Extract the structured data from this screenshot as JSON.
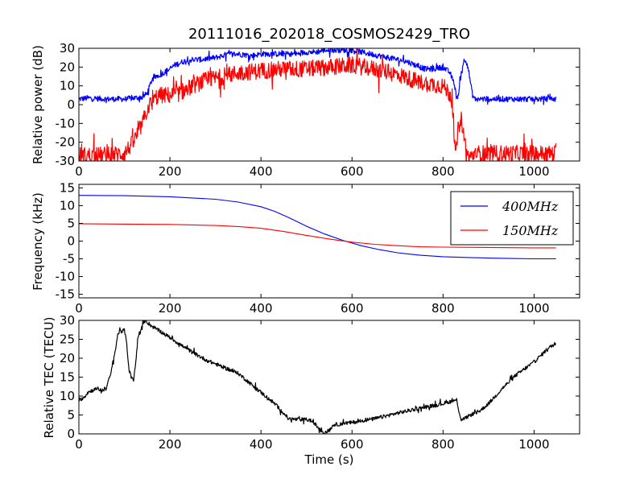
{
  "figure": {
    "title": "20111016_202018_COSMOS2429_TRO",
    "xlabel": "Time (s)"
  },
  "chart_data": [
    {
      "type": "line",
      "ylabel": "Relative power (dB)",
      "xlim": [
        0,
        1100
      ],
      "ylim": [
        -30,
        30
      ],
      "xticks": [
        0,
        200,
        400,
        600,
        800,
        1000
      ],
      "yticks": [
        -30,
        -20,
        -10,
        0,
        10,
        20,
        30
      ],
      "legend": "none",
      "series": [
        {
          "color": "#0000ff",
          "noise": 1.5,
          "x": [
            0,
            20,
            60,
            100,
            140,
            150,
            160,
            170,
            180,
            200,
            210,
            230,
            250,
            270,
            300,
            330,
            350,
            380,
            400,
            420,
            450,
            480,
            500,
            520,
            540,
            560,
            580,
            600,
            620,
            640,
            660,
            680,
            700,
            720,
            740,
            760,
            780,
            800,
            815,
            825,
            830,
            835,
            840,
            845,
            850,
            855,
            860,
            865,
            870,
            900,
            950,
            1000,
            1048
          ],
          "y": [
            3,
            3.5,
            3,
            3,
            4,
            6,
            13,
            15,
            16,
            19,
            21,
            23,
            24,
            24,
            25,
            27,
            27,
            26,
            27,
            27,
            27,
            27,
            28,
            28,
            29,
            29,
            29,
            29,
            28,
            27,
            26,
            25,
            24,
            23,
            21,
            19,
            19,
            20,
            17,
            11,
            3,
            7,
            17,
            23,
            24,
            20,
            12,
            5,
            3,
            3,
            3,
            3,
            3
          ]
        },
        {
          "color": "#ff0000",
          "noise": 4.5,
          "x": [
            0,
            50,
            100,
            120,
            130,
            140,
            145,
            150,
            155,
            160,
            170,
            180,
            200,
            220,
            250,
            280,
            300,
            350,
            400,
            450,
            500,
            550,
            600,
            650,
            700,
            750,
            800,
            820,
            825,
            828,
            832,
            838,
            842,
            848,
            855,
            860,
            865,
            870,
            880,
            900,
            950,
            1000,
            1048
          ],
          "y": [
            -27,
            -27,
            -26,
            -20,
            -15,
            -10,
            -6,
            -3,
            0,
            0,
            4,
            5,
            5,
            6,
            10,
            13,
            14,
            17,
            18,
            19,
            19,
            20,
            21,
            19,
            16,
            12,
            10,
            4,
            -20,
            -28,
            -15,
            -6,
            -10,
            -20,
            -28,
            -29,
            -27,
            -26,
            -26,
            -26,
            -26,
            -26,
            -26
          ]
        }
      ]
    },
    {
      "type": "line",
      "ylabel": "Frequency (kHz)",
      "xlim": [
        0,
        1100
      ],
      "ylim": [
        -16,
        16
      ],
      "xticks": [
        0,
        200,
        400,
        600,
        800,
        1000
      ],
      "yticks": [
        -15,
        -10,
        -5,
        0,
        5,
        10,
        15
      ],
      "legend": "top-right",
      "series": [
        {
          "name": "400MHz",
          "color": "#0000ff",
          "x": [
            0,
            100,
            200,
            300,
            350,
            400,
            430,
            460,
            500,
            540,
            580,
            620,
            660,
            700,
            750,
            800,
            850,
            900,
            950,
            1000,
            1048
          ],
          "y": [
            12.9,
            12.8,
            12.5,
            11.8,
            11.0,
            9.7,
            8.4,
            6.7,
            4.2,
            2.0,
            0.2,
            -1.3,
            -2.4,
            -3.3,
            -4.0,
            -4.4,
            -4.6,
            -4.8,
            -4.9,
            -5.0,
            -5.0
          ]
        },
        {
          "name": "150MHz",
          "color": "#ff0000",
          "x": [
            0,
            100,
            200,
            300,
            350,
            400,
            450,
            500,
            550,
            600,
            650,
            700,
            750,
            800,
            900,
            1000,
            1048
          ],
          "y": [
            4.9,
            4.8,
            4.7,
            4.4,
            4.1,
            3.6,
            2.7,
            1.6,
            0.6,
            -0.3,
            -0.9,
            -1.3,
            -1.6,
            -1.7,
            -1.8,
            -1.9,
            -1.9
          ]
        }
      ]
    },
    {
      "type": "line",
      "ylabel": "Relative TEC (TECU)",
      "xlim": [
        0,
        1100
      ],
      "ylim": [
        0,
        30
      ],
      "xticks": [
        0,
        200,
        400,
        600,
        800,
        1000
      ],
      "yticks": [
        0,
        5,
        10,
        15,
        20,
        25,
        30
      ],
      "legend": "none",
      "series": [
        {
          "color": "#000000",
          "noise": 0.5,
          "x": [
            0,
            10,
            20,
            40,
            50,
            60,
            70,
            80,
            85,
            90,
            95,
            100,
            105,
            110,
            115,
            120,
            125,
            130,
            135,
            140,
            145,
            150,
            160,
            180,
            200,
            230,
            250,
            280,
            300,
            350,
            400,
            430,
            450,
            460,
            480,
            500,
            510,
            520,
            530,
            540,
            550,
            560,
            570,
            580,
            600,
            620,
            650,
            700,
            750,
            800,
            830,
            835,
            840,
            845,
            850,
            860,
            870,
            880,
            900,
            930,
            960,
            1000,
            1030,
            1048
          ],
          "y": [
            9,
            9.5,
            11,
            12,
            11.5,
            12,
            16,
            22,
            26,
            27.5,
            27,
            27.5,
            24,
            17,
            15,
            14,
            19,
            26,
            27,
            29,
            29.8,
            29.5,
            28.5,
            27,
            25.5,
            23,
            21.5,
            19.5,
            18.5,
            16,
            11,
            8,
            5.5,
            4,
            3.8,
            3.8,
            3.5,
            2.5,
            1,
            0.2,
            1,
            2.5,
            2.5,
            2.8,
            3,
            3.5,
            4,
            5.5,
            6.8,
            8,
            9,
            6,
            3.7,
            4,
            4.2,
            5,
            5.5,
            6,
            8,
            12,
            15.5,
            19,
            22.5,
            24
          ]
        }
      ]
    }
  ]
}
